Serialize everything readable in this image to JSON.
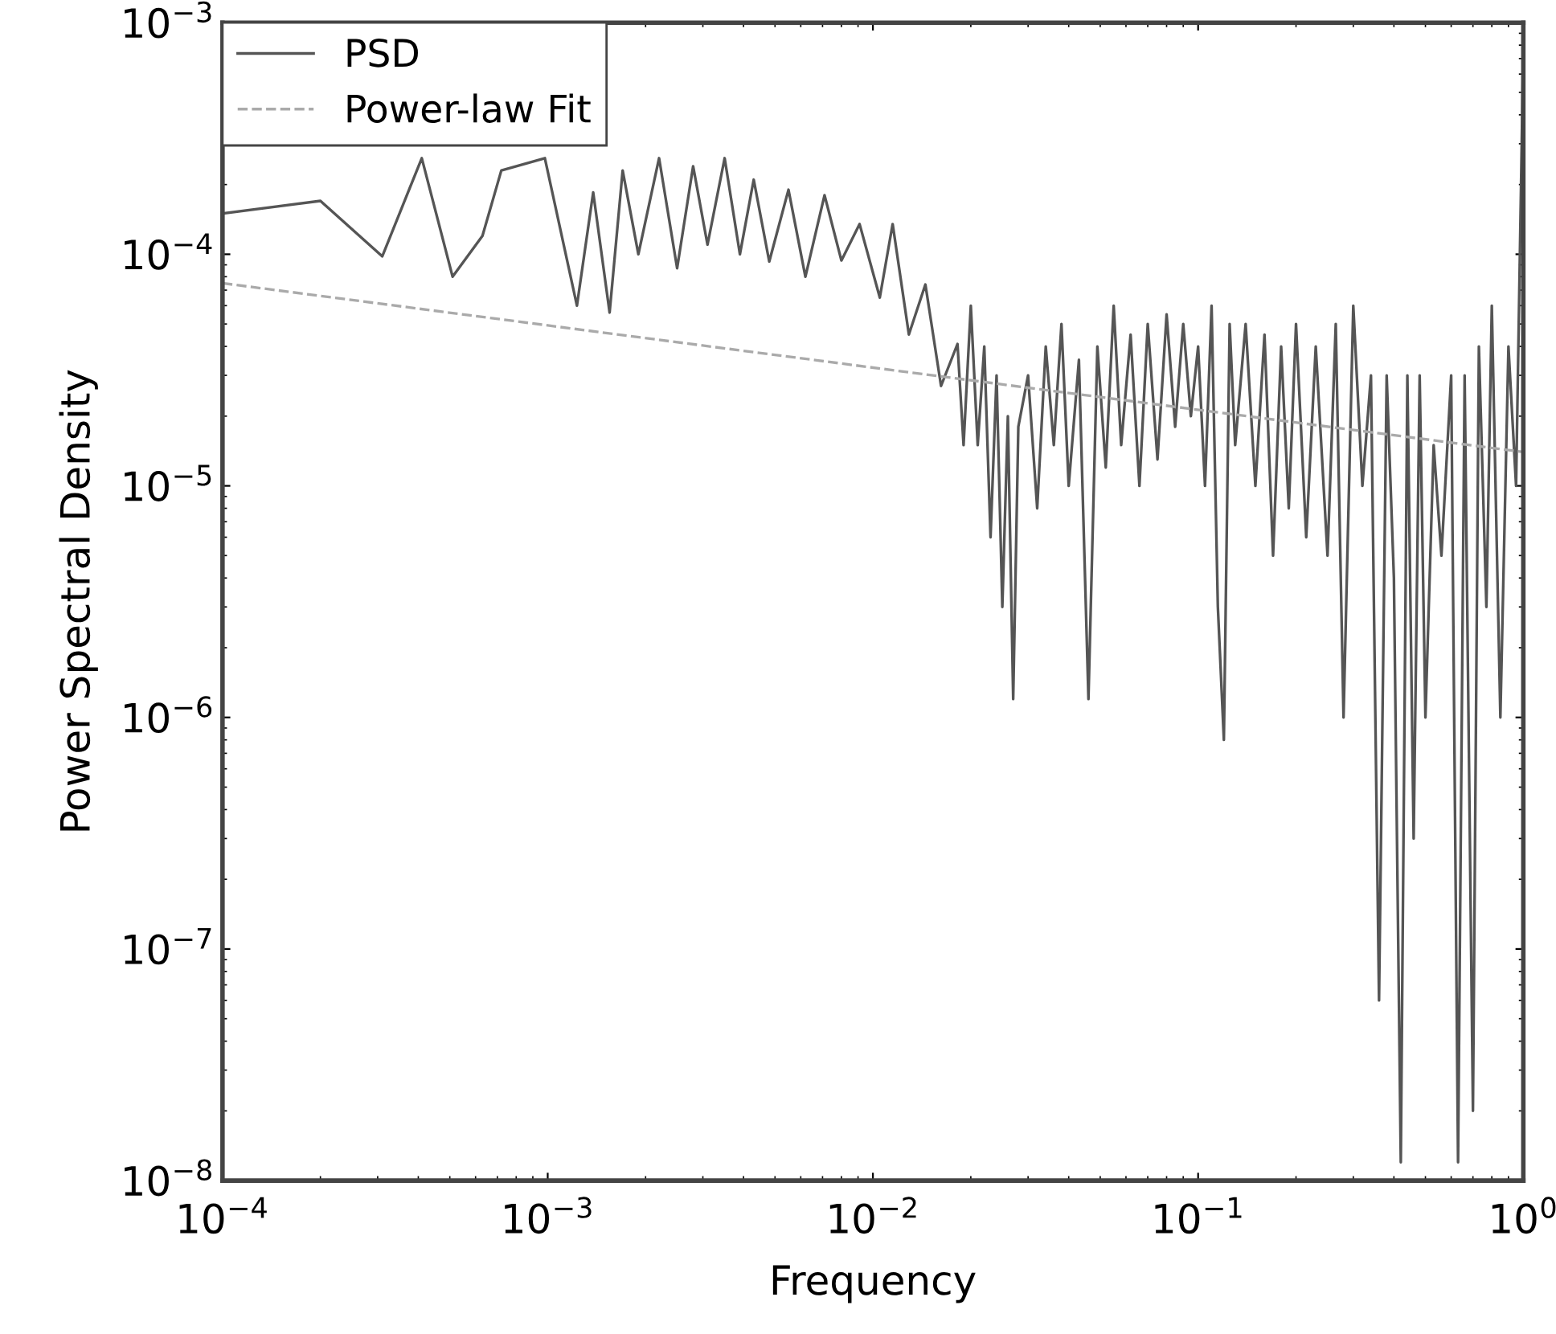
{
  "chart_data": {
    "type": "line",
    "xlabel": "Frequency",
    "ylabel": "Power Spectral Density",
    "log": "xy",
    "grid": false,
    "legend": "top left",
    "marker": "none",
    "xlim": [
      0.0001,
      1
    ],
    "ylim": [
      1e-08,
      0.001
    ],
    "xticks": [
      {
        "value": 0.0001,
        "label": "10$^{−4}$"
      },
      {
        "value": 0.001,
        "label": "10$^{−3}$"
      },
      {
        "value": 0.01,
        "label": "10$^{−2}$"
      },
      {
        "value": 0.1,
        "label": "10$^{−1}$"
      },
      {
        "value": 1,
        "label": "10$^{0}$"
      }
    ],
    "yticks": [
      {
        "value": 1e-08,
        "label": "10$^{−8}$"
      },
      {
        "value": 1e-07,
        "label": "10$^{−7}$"
      },
      {
        "value": 1e-06,
        "label": "10$^{−6}$"
      },
      {
        "value": 1e-05,
        "label": "10$^{−5}$"
      },
      {
        "value": 0.0001,
        "label": "10$^{−4}$"
      },
      {
        "value": 0.001,
        "label": "10$^{−3}$"
      }
    ],
    "series": [
      {
        "name": "PSD",
        "color": "#555555",
        "line_style": "solid",
        "x": [
          0.0001,
          0.0002,
          0.00031,
          0.00041,
          0.00051,
          0.00063,
          0.00072,
          0.00098,
          0.00123,
          0.00138,
          0.00155,
          0.0017,
          0.0019,
          0.0022,
          0.0025,
          0.0028,
          0.0031,
          0.0035,
          0.0039,
          0.0043,
          0.0048,
          0.0055,
          0.0062,
          0.0071,
          0.008,
          0.0091,
          0.0105,
          0.0115,
          0.0129,
          0.0145,
          0.0162,
          0.0182,
          0.019,
          0.02,
          0.021,
          0.022,
          0.023,
          0.024,
          0.025,
          0.026,
          0.027,
          0.028,
          0.03,
          0.032,
          0.034,
          0.036,
          0.038,
          0.04,
          0.043,
          0.046,
          0.049,
          0.052,
          0.055,
          0.058,
          0.062,
          0.066,
          0.07,
          0.075,
          0.08,
          0.085,
          0.09,
          0.095,
          0.1,
          0.105,
          0.11,
          0.115,
          0.12,
          0.125,
          0.13,
          0.14,
          0.15,
          0.16,
          0.17,
          0.18,
          0.19,
          0.2,
          0.215,
          0.23,
          0.25,
          0.265,
          0.28,
          0.3,
          0.32,
          0.34,
          0.36,
          0.38,
          0.4,
          0.42,
          0.44,
          0.46,
          0.48,
          0.5,
          0.53,
          0.56,
          0.6,
          0.63,
          0.66,
          0.7,
          0.73,
          0.77,
          0.8,
          0.85,
          0.9,
          0.95,
          1
        ],
        "values": [
          0.00015,
          0.00017,
          9.8e-05,
          0.00026,
          8e-05,
          0.00012,
          0.00023,
          0.00026,
          6e-05,
          0.000185,
          5.6e-05,
          0.00023,
          0.0001,
          0.00026,
          8.7e-05,
          0.00024,
          0.00011,
          0.00026,
          0.0001,
          0.00021,
          9.3e-05,
          0.00019,
          8e-05,
          0.00018,
          9.4e-05,
          0.000135,
          6.5e-05,
          0.000135,
          4.5e-05,
          7.4e-05,
          2.7e-05,
          4.1e-05,
          1.5e-05,
          6e-05,
          1.5e-05,
          4e-05,
          6e-06,
          3e-05,
          3e-06,
          2e-05,
          1.2e-06,
          1.8e-05,
          3e-05,
          8e-06,
          4e-05,
          1.5e-05,
          5e-05,
          1e-05,
          3.5e-05,
          1.2e-06,
          4e-05,
          1.2e-05,
          6e-05,
          1.5e-05,
          4.5e-05,
          1e-05,
          5e-05,
          1.3e-05,
          5.5e-05,
          1.8e-05,
          5e-05,
          2e-05,
          4e-05,
          1e-05,
          6e-05,
          3e-06,
          8e-07,
          5e-05,
          1.5e-05,
          5e-05,
          1e-05,
          4.5e-05,
          5e-06,
          4e-05,
          8e-06,
          5e-05,
          6e-06,
          4e-05,
          5e-06,
          5e-05,
          1e-06,
          6e-05,
          1e-05,
          3e-05,
          6e-08,
          3e-05,
          4e-06,
          1.2e-08,
          3e-05,
          3e-07,
          3e-05,
          1e-06,
          1.5e-05,
          5e-06,
          3e-05,
          1.2e-08,
          3e-05,
          2e-08,
          4e-05,
          3e-06,
          6e-05,
          1e-06,
          4e-05,
          1e-05,
          0.0008
        ]
      },
      {
        "name": "Power-law Fit",
        "color": "#aaaaaa",
        "line_style": "dashed",
        "x": [
          0.0001,
          1
        ],
        "values": [
          7.5e-05,
          1.4e-05
        ]
      }
    ]
  }
}
